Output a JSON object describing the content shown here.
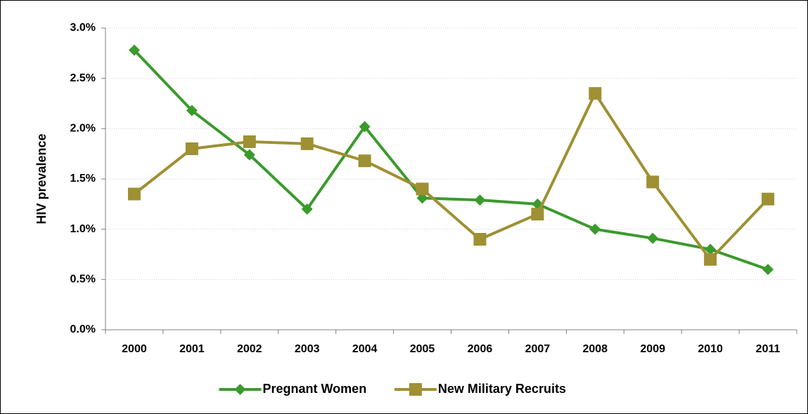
{
  "chart_data": {
    "type": "line",
    "ylabel": "HIV prevalence",
    "categories": [
      "2000",
      "2001",
      "2002",
      "2003",
      "2004",
      "2005",
      "2006",
      "2007",
      "2008",
      "2009",
      "2010",
      "2011"
    ],
    "series": [
      {
        "name": "Pregnant Women",
        "color": "#3a9a2c",
        "marker": "diamond",
        "values": [
          2.78,
          2.18,
          1.74,
          1.2,
          2.02,
          1.31,
          1.29,
          1.25,
          1.0,
          0.91,
          0.8,
          0.6
        ]
      },
      {
        "name": "New Military Recruits",
        "color": "#9e9033",
        "marker": "square",
        "values": [
          1.35,
          1.8,
          1.87,
          1.85,
          1.68,
          1.4,
          0.9,
          1.15,
          2.35,
          1.47,
          0.7,
          1.3
        ]
      }
    ],
    "ylim": [
      0,
      3
    ],
    "yticks": [
      {
        "value": 0,
        "label": "0.0%"
      },
      {
        "value": 0.5,
        "label": "0.5%"
      },
      {
        "value": 1,
        "label": "1.0%"
      },
      {
        "value": 1.5,
        "label": "1.5%"
      },
      {
        "value": 2,
        "label": "2.0%"
      },
      {
        "value": 2.5,
        "label": "2.5%"
      },
      {
        "value": 3,
        "label": "3.0%"
      }
    ],
    "grid": true,
    "legend": "bottom"
  }
}
